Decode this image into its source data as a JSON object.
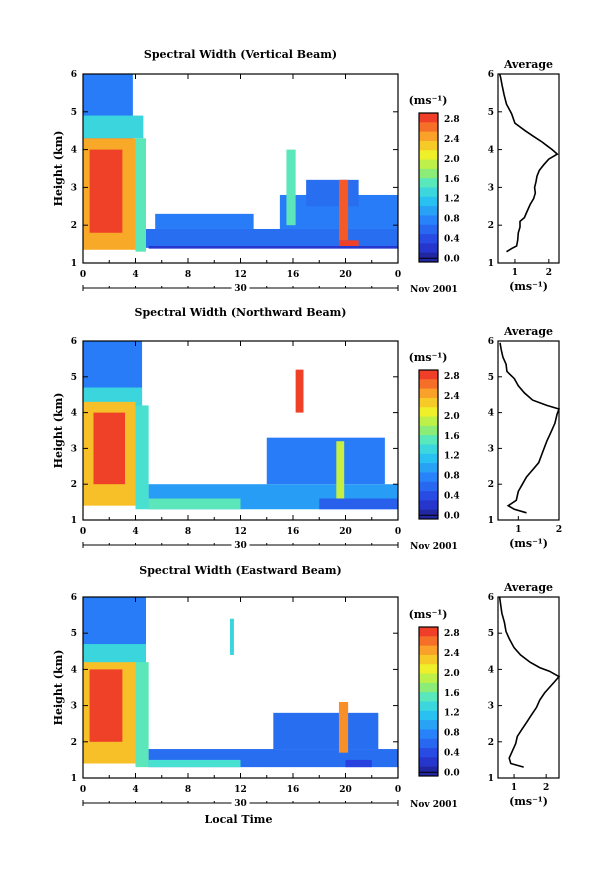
{
  "chart_data": [
    {
      "type": "heatmap",
      "title": "Spectral Width (Vertical Beam)",
      "ylabel": "Height (km)",
      "xlabel": "",
      "x_ticks": [
        "0",
        "4",
        "8",
        "12",
        "16",
        "20",
        "0"
      ],
      "y_ticks": [
        "1",
        "2",
        "3",
        "4",
        "5",
        "6"
      ],
      "xlim": [
        0,
        24
      ],
      "ylim": [
        1,
        6
      ],
      "date_day": "30",
      "date_month": "Nov 2001",
      "colorbar_unit": "(ms⁻¹)",
      "colorbar_ticks": [
        "2.8",
        "2.4",
        "2.0",
        "1.6",
        "1.2",
        "0.8",
        "0.4",
        "0.0"
      ],
      "colorbar_range": [
        0,
        3
      ],
      "average": {
        "title": "Average",
        "xlabel": "(ms⁻¹)",
        "x_ticks": [
          "1",
          "2"
        ],
        "xlim": [
          0.5,
          2.3
        ],
        "points": [
          [
            0.75,
            1.3
          ],
          [
            0.9,
            1.38
          ],
          [
            1.05,
            1.45
          ],
          [
            1.08,
            1.6
          ],
          [
            1.1,
            1.8
          ],
          [
            1.15,
            1.95
          ],
          [
            1.15,
            2.1
          ],
          [
            1.28,
            2.2
          ],
          [
            1.35,
            2.35
          ],
          [
            1.45,
            2.55
          ],
          [
            1.55,
            2.7
          ],
          [
            1.6,
            2.85
          ],
          [
            1.58,
            3.0
          ],
          [
            1.62,
            3.15
          ],
          [
            1.65,
            3.3
          ],
          [
            1.72,
            3.45
          ],
          [
            1.85,
            3.6
          ],
          [
            2.0,
            3.75
          ],
          [
            2.25,
            3.88
          ],
          [
            2.1,
            4.0
          ],
          [
            1.95,
            4.1
          ],
          [
            1.8,
            4.2
          ],
          [
            1.55,
            4.35
          ],
          [
            1.3,
            4.5
          ],
          [
            1.0,
            4.7
          ],
          [
            0.9,
            4.95
          ],
          [
            0.75,
            5.2
          ],
          [
            0.68,
            5.45
          ],
          [
            0.62,
            5.7
          ],
          [
            0.58,
            5.9
          ],
          [
            0.55,
            6.0
          ]
        ]
      },
      "regions": [
        {
          "t0": 0,
          "t1": 3.8,
          "h0": 4.2,
          "h1": 6.0,
          "v": 0.8
        },
        {
          "t0": 0,
          "t1": 4.6,
          "h0": 4.3,
          "h1": 4.9,
          "v": 1.4
        },
        {
          "t0": 0,
          "t1": 4.0,
          "h0": 1.35,
          "h1": 4.3,
          "v": 2.5
        },
        {
          "t0": 0.5,
          "t1": 3.0,
          "h0": 1.8,
          "h1": 4.0,
          "v": 2.9
        },
        {
          "t0": 4.0,
          "t1": 4.8,
          "h0": 1.3,
          "h1": 4.3,
          "v": 1.6
        },
        {
          "t0": 4.8,
          "t1": 24,
          "h0": 1.4,
          "h1": 1.9,
          "v": 0.7
        },
        {
          "t0": 5.5,
          "t1": 13,
          "h0": 1.9,
          "h1": 2.3,
          "v": 0.8
        },
        {
          "t0": 15,
          "t1": 24,
          "h0": 1.9,
          "h1": 2.8,
          "v": 0.8
        },
        {
          "t0": 15.5,
          "t1": 16.2,
          "h0": 2.0,
          "h1": 4.0,
          "v": 1.6
        },
        {
          "t0": 17,
          "t1": 21,
          "h0": 2.5,
          "h1": 3.2,
          "v": 0.7
        },
        {
          "t0": 19.5,
          "t1": 20.2,
          "h0": 1.6,
          "h1": 3.2,
          "v": 2.8
        },
        {
          "t0": 19.5,
          "t1": 21,
          "h0": 1.4,
          "h1": 1.6,
          "v": 2.9
        },
        {
          "t0": 5,
          "t1": 24,
          "h0": 1.38,
          "h1": 1.45,
          "v": 0.3
        }
      ]
    },
    {
      "type": "heatmap",
      "title": "Spectral Width (Northward Beam)",
      "ylabel": "Height (km)",
      "xlabel": "",
      "x_ticks": [
        "0",
        "4",
        "8",
        "12",
        "16",
        "20",
        "0"
      ],
      "y_ticks": [
        "1",
        "2",
        "3",
        "4",
        "5",
        "6"
      ],
      "xlim": [
        0,
        24
      ],
      "ylim": [
        1,
        6
      ],
      "date_day": "30",
      "date_month": "Nov 2001",
      "colorbar_unit": "(ms⁻¹)",
      "colorbar_ticks": [
        "2.8",
        "2.4",
        "2.0",
        "1.6",
        "1.2",
        "0.8",
        "0.4",
        "0.0"
      ],
      "colorbar_range": [
        0,
        3
      ],
      "average": {
        "title": "Average",
        "xlabel": "(ms⁻¹)",
        "x_ticks": [
          "1",
          "2"
        ],
        "xlim": [
          0.5,
          2.0
        ],
        "points": [
          [
            1.2,
            1.2
          ],
          [
            0.9,
            1.3
          ],
          [
            0.75,
            1.4
          ],
          [
            0.95,
            1.55
          ],
          [
            1.0,
            1.8
          ],
          [
            1.1,
            2.0
          ],
          [
            1.2,
            2.2
          ],
          [
            1.35,
            2.4
          ],
          [
            1.5,
            2.6
          ],
          [
            1.6,
            2.9
          ],
          [
            1.7,
            3.2
          ],
          [
            1.8,
            3.45
          ],
          [
            1.9,
            3.7
          ],
          [
            1.95,
            3.95
          ],
          [
            2.0,
            4.1
          ],
          [
            1.7,
            4.2
          ],
          [
            1.35,
            4.35
          ],
          [
            1.15,
            4.55
          ],
          [
            1.0,
            4.75
          ],
          [
            0.9,
            4.95
          ],
          [
            0.72,
            5.15
          ],
          [
            0.7,
            5.35
          ],
          [
            0.62,
            5.55
          ],
          [
            0.58,
            5.75
          ],
          [
            0.55,
            5.95
          ]
        ]
      },
      "regions": [
        {
          "t0": 0,
          "t1": 4.5,
          "h0": 4.2,
          "h1": 6.0,
          "v": 0.8
        },
        {
          "t0": 0,
          "t1": 4.5,
          "h0": 4.2,
          "h1": 4.7,
          "v": 1.4
        },
        {
          "t0": 0,
          "t1": 4.0,
          "h0": 1.4,
          "h1": 4.3,
          "v": 2.4
        },
        {
          "t0": 0.8,
          "t1": 3.2,
          "h0": 2.0,
          "h1": 4.0,
          "v": 2.9
        },
        {
          "t0": 4.0,
          "t1": 5.0,
          "h0": 1.3,
          "h1": 4.2,
          "v": 1.5
        },
        {
          "t0": 5.0,
          "t1": 24,
          "h0": 1.3,
          "h1": 2.0,
          "v": 1.0
        },
        {
          "t0": 5.0,
          "t1": 12,
          "h0": 1.3,
          "h1": 1.6,
          "v": 1.6
        },
        {
          "t0": 14,
          "t1": 23,
          "h0": 2.0,
          "h1": 3.3,
          "v": 0.8
        },
        {
          "t0": 16.2,
          "t1": 16.8,
          "h0": 4.0,
          "h1": 5.2,
          "v": 2.9
        },
        {
          "t0": 19.3,
          "t1": 19.9,
          "h0": 1.6,
          "h1": 3.2,
          "v": 2.0
        },
        {
          "t0": 18,
          "t1": 24,
          "h0": 1.3,
          "h1": 1.6,
          "v": 0.6
        }
      ]
    },
    {
      "type": "heatmap",
      "title": "Spectral Width (Eastward Beam)",
      "ylabel": "Height (km)",
      "xlabel": "Local Time",
      "x_ticks": [
        "0",
        "4",
        "8",
        "12",
        "16",
        "20",
        "0"
      ],
      "y_ticks": [
        "1",
        "2",
        "3",
        "4",
        "5",
        "6"
      ],
      "xlim": [
        0,
        24
      ],
      "ylim": [
        1,
        6
      ],
      "date_day": "30",
      "date_month": "Nov 2001",
      "colorbar_unit": "(ms⁻¹)",
      "colorbar_ticks": [
        "2.8",
        "2.4",
        "2.0",
        "1.6",
        "1.2",
        "0.8",
        "0.4",
        "0.0"
      ],
      "colorbar_range": [
        0,
        3
      ],
      "average": {
        "title": "Average",
        "xlabel": "(ms⁻¹)",
        "x_ticks": [
          "1",
          "2"
        ],
        "xlim": [
          0.5,
          2.4
        ],
        "points": [
          [
            1.3,
            1.3
          ],
          [
            0.9,
            1.4
          ],
          [
            0.85,
            1.55
          ],
          [
            0.95,
            1.75
          ],
          [
            1.05,
            1.95
          ],
          [
            1.1,
            2.15
          ],
          [
            1.25,
            2.35
          ],
          [
            1.4,
            2.55
          ],
          [
            1.55,
            2.75
          ],
          [
            1.7,
            2.95
          ],
          [
            1.8,
            3.15
          ],
          [
            1.95,
            3.35
          ],
          [
            2.1,
            3.5
          ],
          [
            2.25,
            3.65
          ],
          [
            2.4,
            3.8
          ],
          [
            2.1,
            3.95
          ],
          [
            1.8,
            4.05
          ],
          [
            1.5,
            4.2
          ],
          [
            1.2,
            4.4
          ],
          [
            1.0,
            4.6
          ],
          [
            0.85,
            4.85
          ],
          [
            0.75,
            5.05
          ],
          [
            0.7,
            5.3
          ],
          [
            0.62,
            5.55
          ],
          [
            0.58,
            5.8
          ],
          [
            0.55,
            6.0
          ]
        ]
      },
      "regions": [
        {
          "t0": 0,
          "t1": 4.8,
          "h0": 4.1,
          "h1": 6.0,
          "v": 0.8
        },
        {
          "t0": 0,
          "t1": 4.8,
          "h0": 4.1,
          "h1": 4.7,
          "v": 1.4
        },
        {
          "t0": 0,
          "t1": 4.0,
          "h0": 1.4,
          "h1": 4.2,
          "v": 2.4
        },
        {
          "t0": 0.5,
          "t1": 3.0,
          "h0": 2.0,
          "h1": 4.0,
          "v": 2.9
        },
        {
          "t0": 4.0,
          "t1": 5.0,
          "h0": 1.3,
          "h1": 4.2,
          "v": 1.6
        },
        {
          "t0": 5.0,
          "t1": 24,
          "h0": 1.3,
          "h1": 1.8,
          "v": 0.7
        },
        {
          "t0": 5.0,
          "t1": 12,
          "h0": 1.3,
          "h1": 1.5,
          "v": 1.5
        },
        {
          "t0": 14.5,
          "t1": 22.5,
          "h0": 1.8,
          "h1": 2.8,
          "v": 0.7
        },
        {
          "t0": 19.5,
          "t1": 20.2,
          "h0": 1.7,
          "h1": 3.1,
          "v": 2.6
        },
        {
          "t0": 11.2,
          "t1": 11.5,
          "h0": 4.4,
          "h1": 5.4,
          "v": 1.4
        },
        {
          "t0": 20,
          "t1": 22,
          "h0": 1.3,
          "h1": 1.5,
          "v": 0.4
        }
      ]
    }
  ]
}
